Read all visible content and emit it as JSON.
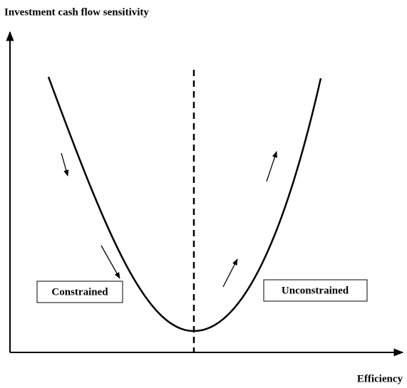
{
  "y_axis_label": "Investment cash flow sensitivity",
  "x_axis_label": "Efficiency",
  "regions": [
    {
      "label": "Constrained"
    },
    {
      "label": "Unconstrained"
    }
  ]
}
